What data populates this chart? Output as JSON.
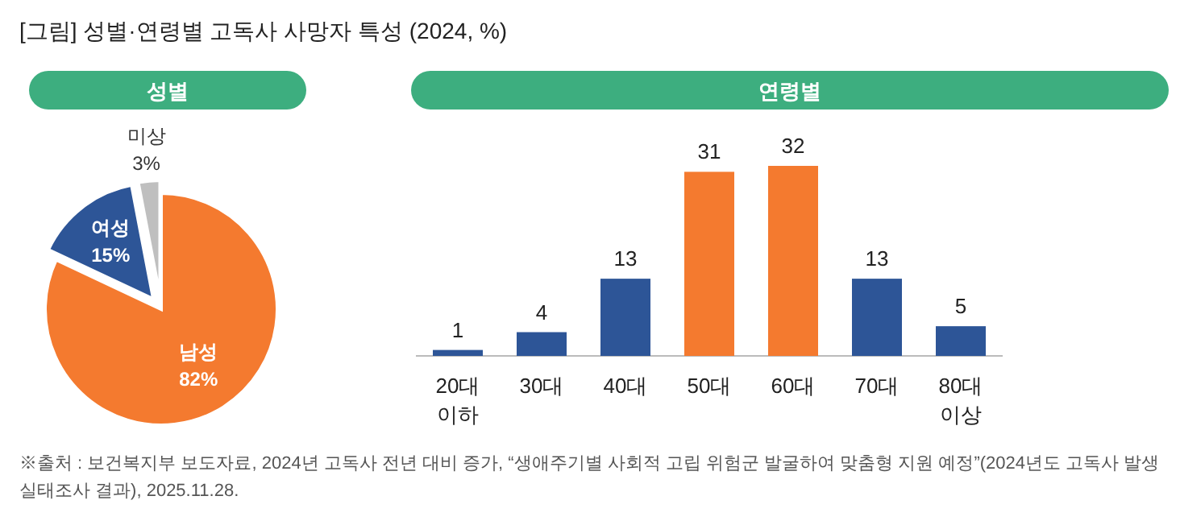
{
  "chart_data": [
    {
      "type": "pie",
      "title": "[그림] 성별·연령별 고독사 사망자 특성 (2024, %)",
      "subtitle": "성별",
      "categories": [
        "남성",
        "여성",
        "미상"
      ],
      "values": [
        82,
        15,
        3
      ],
      "colors": [
        "#f47a2f",
        "#2d5597",
        "#bfbfbf"
      ],
      "value_labels": [
        "82%",
        "15%",
        "3%"
      ]
    },
    {
      "type": "bar",
      "title": "연령별",
      "categories": [
        "20대\n이하",
        "30대",
        "40대",
        "50대",
        "60대",
        "70대",
        "80대\n이상"
      ],
      "values": [
        1,
        4,
        13,
        31,
        32,
        13,
        5
      ],
      "colors": [
        "#2d5597",
        "#2d5597",
        "#2d5597",
        "#f47a2f",
        "#f47a2f",
        "#2d5597",
        "#2d5597"
      ],
      "data_labels": true,
      "annotations": [
        "※출처 : 보건복지부 보도자료, 2024년 고독사 전년 대비 증가, “생애주기별 사회적 고립 위험군 발굴하여 맞춤형 지원 예정”(2024년도 고독사 발생 실태조사 결과), 2025.11.28."
      ]
    }
  ]
}
